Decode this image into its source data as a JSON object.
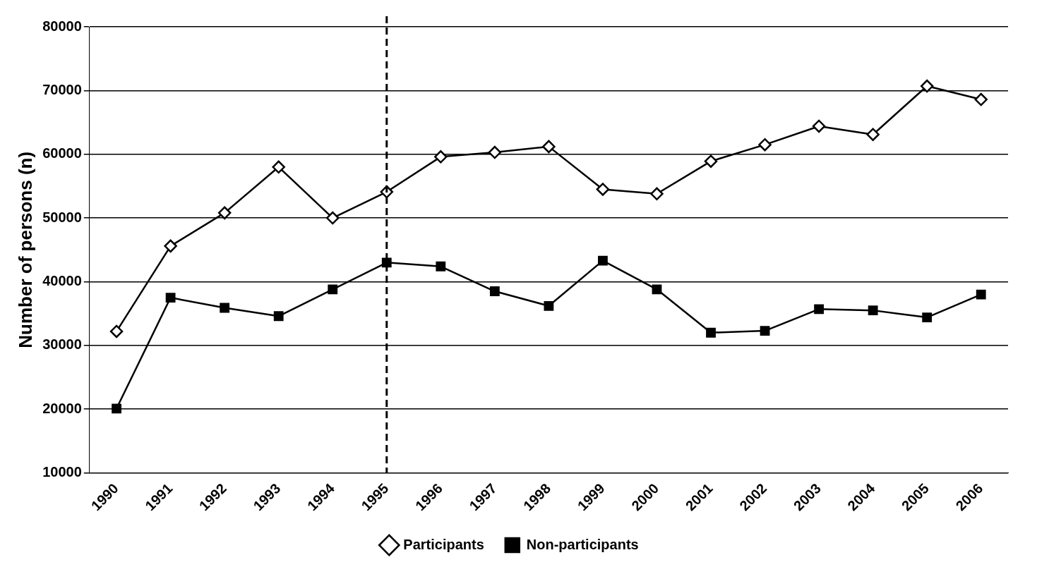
{
  "chart_data": {
    "type": "line",
    "ylabel": "Number of persons (n)",
    "categories": [
      "1990",
      "1991",
      "1992",
      "1993",
      "1994",
      "1995",
      "1996",
      "1997",
      "1998",
      "1999",
      "2000",
      "2001",
      "2002",
      "2003",
      "2004",
      "2005",
      "2006"
    ],
    "series": [
      {
        "name": "Participants",
        "color": "#000000",
        "marker": "diamond",
        "values": [
          32200,
          45600,
          50800,
          58000,
          50000,
          54100,
          59600,
          60300,
          61200,
          54500,
          53800,
          58900,
          61500,
          64400,
          63100,
          70700,
          68600
        ]
      },
      {
        "name": "Non-participants",
        "color": "#000000",
        "marker": "square",
        "values": [
          20100,
          37500,
          35900,
          34600,
          38800,
          43000,
          42400,
          38500,
          36200,
          43300,
          38800,
          32000,
          32300,
          35700,
          35500,
          34400,
          38000
        ]
      }
    ],
    "ylim": [
      10000,
      80000
    ],
    "yticks": [
      10000,
      20000,
      30000,
      40000,
      50000,
      60000,
      70000,
      80000
    ],
    "grid": "y",
    "legend": "bottom",
    "ref_lines": [
      {
        "axis": "x",
        "value": "1995",
        "line_style": "dashed",
        "color": "#000000"
      }
    ]
  }
}
